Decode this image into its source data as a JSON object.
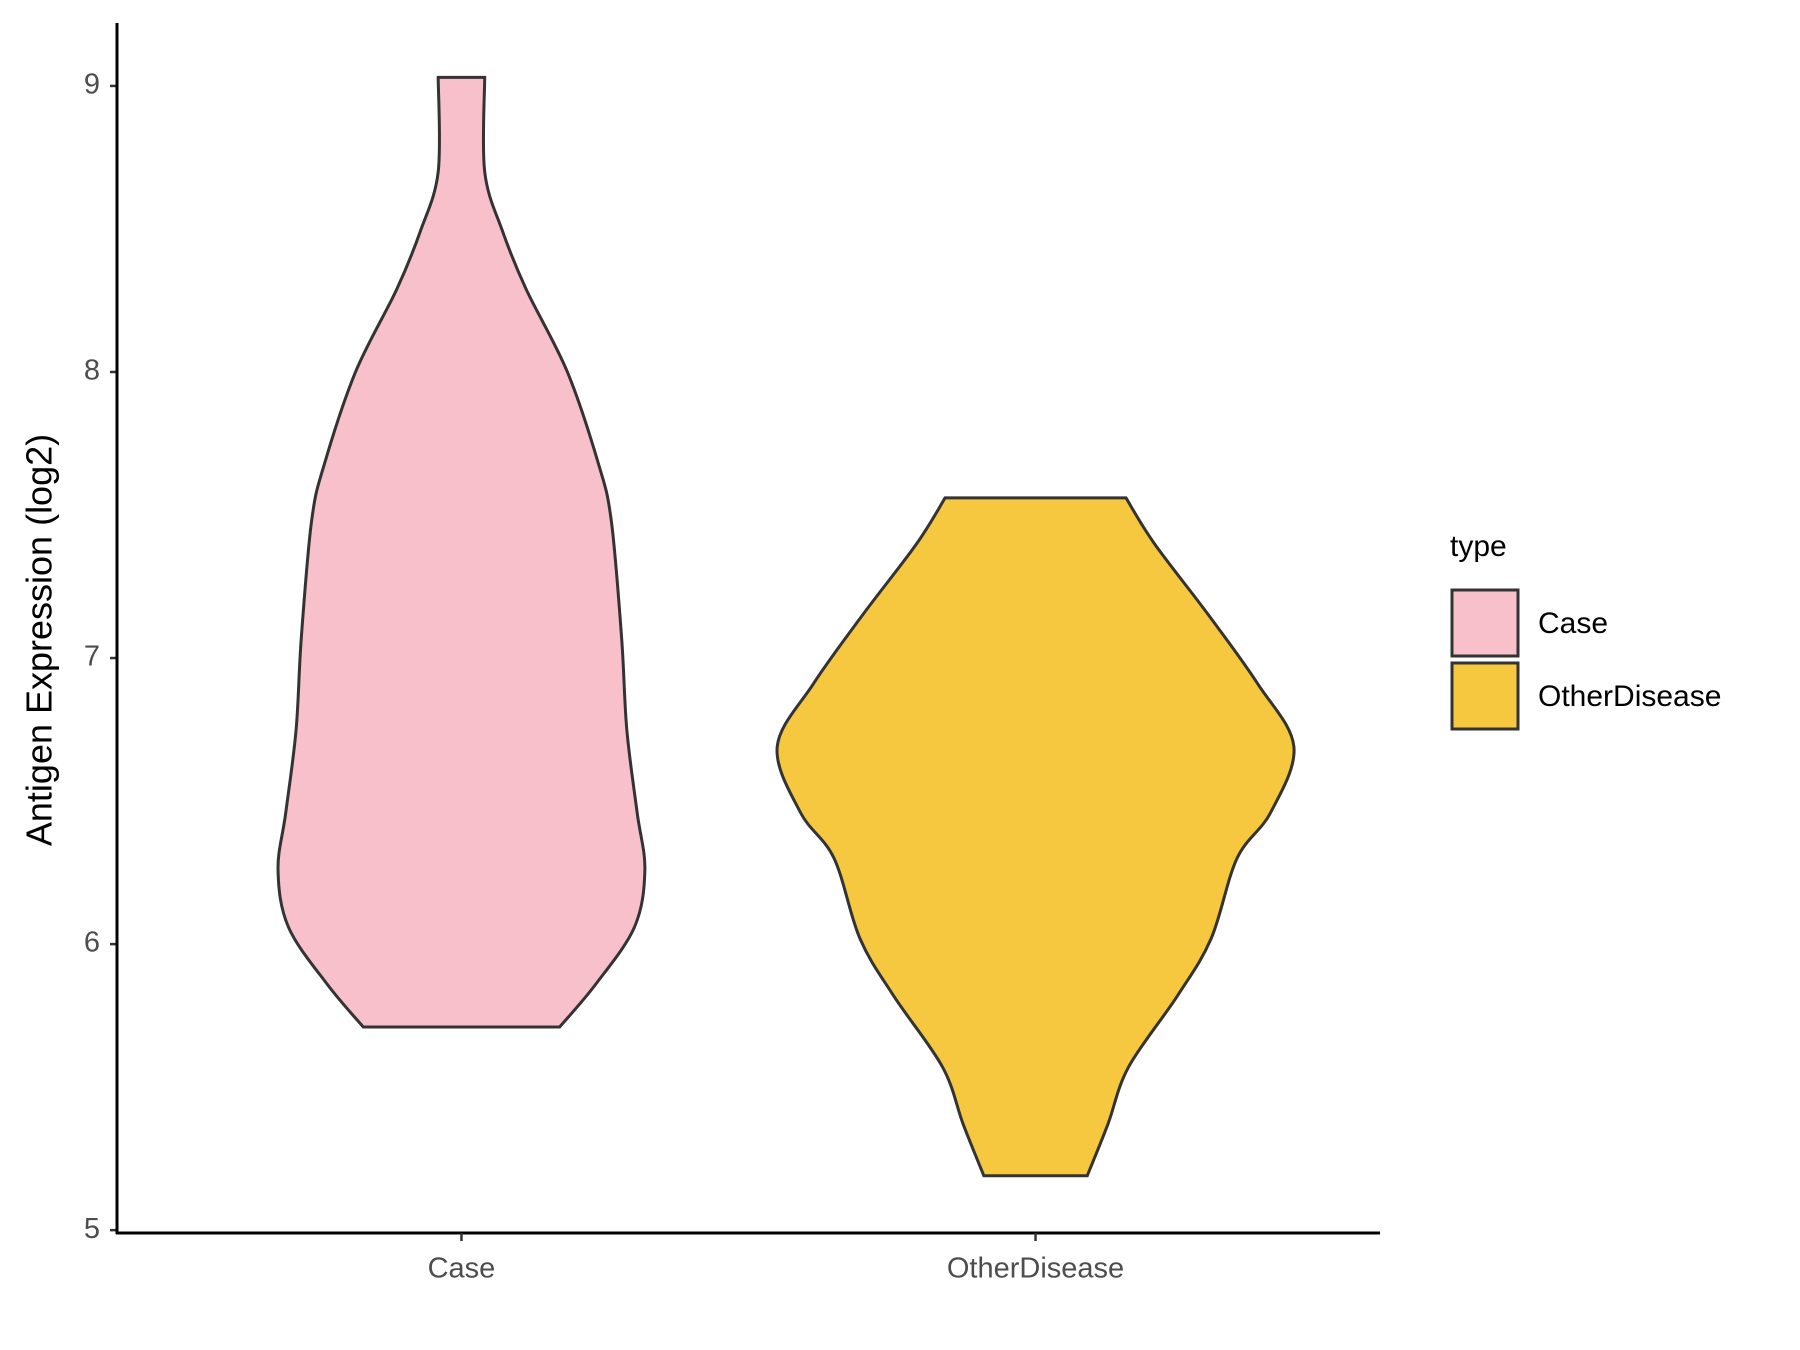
{
  "chart_data": {
    "type": "violin",
    "y_label": "Antigen Expression (log2)",
    "categories": [
      "Case",
      "OtherDisease"
    ],
    "legend_title": "type",
    "series": [
      {
        "name": "Case",
        "color": "#f7c0cb",
        "y": [
          9.03,
          8.7,
          8.49,
          8.29,
          8.0,
          7.68,
          7.48,
          7.07,
          6.75,
          6.46,
          6.26,
          6.06,
          5.86,
          5.71
        ],
        "width": [
          0.09,
          0.09,
          0.16,
          0.25,
          0.41,
          0.53,
          0.58,
          0.62,
          0.64,
          0.68,
          0.71,
          0.67,
          0.52,
          0.38
        ]
      },
      {
        "name": "OtherDisease",
        "color": "#f5c83f",
        "y": [
          7.56,
          7.4,
          7.15,
          6.91,
          6.69,
          6.46,
          6.3,
          6.02,
          5.82,
          5.57,
          5.37,
          5.19
        ],
        "width": [
          0.35,
          0.46,
          0.67,
          0.86,
          1.0,
          0.91,
          0.78,
          0.68,
          0.55,
          0.36,
          0.28,
          0.2
        ]
      }
    ],
    "ylim": [
      4.99,
      9.22
    ],
    "yticks": [
      5,
      6,
      7,
      8,
      9
    ],
    "grid": false
  }
}
